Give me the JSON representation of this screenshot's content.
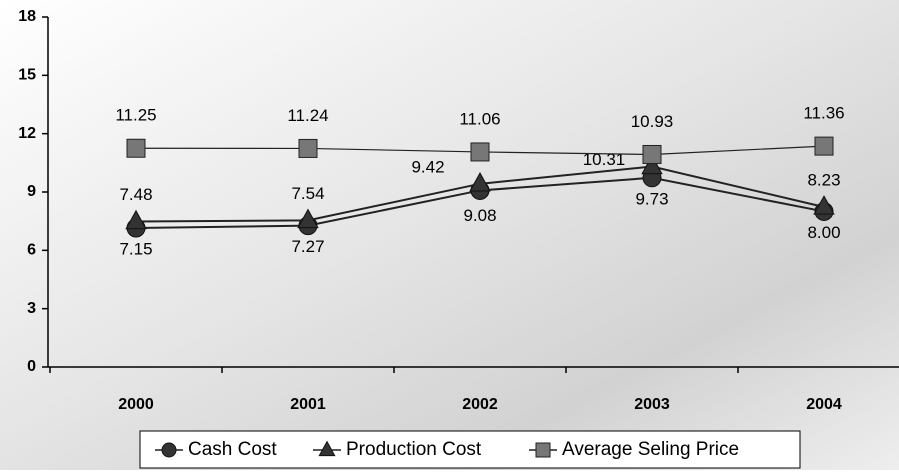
{
  "chart_data": {
    "type": "line",
    "categories": [
      "2000",
      "2001",
      "2002",
      "2003",
      "2004"
    ],
    "series": [
      {
        "name": "Cash Cost",
        "color": "#333333",
        "marker": "circle",
        "values": [
          7.15,
          7.27,
          9.08,
          9.73,
          8.0
        ],
        "value_labels": [
          "7.15",
          "7.27",
          "9.08",
          "9.73",
          "8.00"
        ]
      },
      {
        "name": "Production Cost",
        "color": "#333333",
        "marker": "triangle",
        "values": [
          7.48,
          7.54,
          9.42,
          10.31,
          8.23
        ],
        "value_labels": [
          "7.48",
          "7.54",
          "9.42",
          "10.31",
          "8.23"
        ]
      },
      {
        "name": "Average Seling Price",
        "color": "#777777",
        "marker": "square",
        "values": [
          11.25,
          11.24,
          11.06,
          10.93,
          11.36
        ],
        "value_labels": [
          "11.25",
          "11.24",
          "11.06",
          "10.93",
          "11.36"
        ]
      }
    ],
    "ylim": [
      0,
      18
    ],
    "yticks": [
      0,
      3,
      6,
      9,
      12,
      15,
      18
    ]
  }
}
